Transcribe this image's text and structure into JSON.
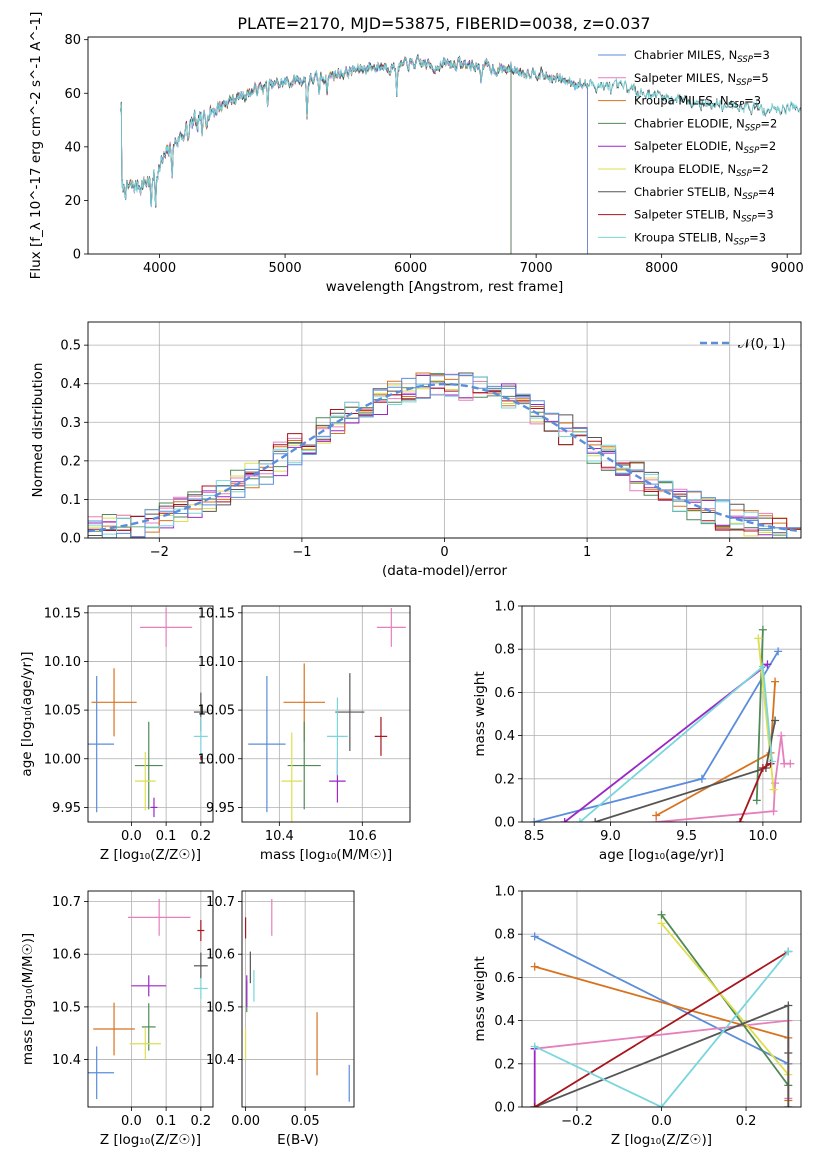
{
  "figure": {
    "title": "PLATE=2170, MJD=53875, FIBERID=0038, z=0.037"
  },
  "colors": {
    "Chabrier MILES": "#5b8ddb",
    "Salpeter MILES": "#e67fbd",
    "Kroupa MILES": "#d9721f",
    "Chabrier ELODIE": "#4f8a55",
    "Salpeter ELODIE": "#9b27c7",
    "Kroupa ELODIE": "#dede50",
    "Chabrier STELIB": "#555555",
    "Salpeter STELIB": "#a8151e",
    "Kroupa STELIB": "#79d6dc"
  },
  "chart_data": [
    {
      "id": "spectrum",
      "type": "line",
      "title": "PLATE=2170, MJD=53875, FIBERID=0038, z=0.037",
      "xlabel": "wavelength [Angstrom, rest frame]",
      "ylabel": "Flux [f_λ 10^-17 erg cm^-2 s^-1 A^-1]",
      "xlim": [
        3430,
        9110
      ],
      "ylim": [
        0,
        81
      ],
      "xticks": [
        "4000",
        "5000",
        "6000",
        "7000",
        "8000",
        "9000"
      ],
      "yticks": [
        "0",
        "20",
        "40",
        "60",
        "80"
      ],
      "grid": false,
      "legend_position": "top-right",
      "legend": [
        {
          "model": "Chabrier MILES",
          "label": "Chabrier MILES, N",
          "sub": "SSP",
          "eq": "=3"
        },
        {
          "model": "Salpeter MILES",
          "label": "Salpeter MILES, N",
          "sub": "SSP",
          "eq": "=5"
        },
        {
          "model": "Kroupa MILES",
          "label": "Kroupa MILES, N",
          "sub": "SSP",
          "eq": "=3"
        },
        {
          "model": "Chabrier ELODIE",
          "label": "Chabrier ELODIE, N",
          "sub": "SSP",
          "eq": "=2"
        },
        {
          "model": "Salpeter ELODIE",
          "label": "Salpeter ELODIE, N",
          "sub": "SSP",
          "eq": "=2"
        },
        {
          "model": "Kroupa ELODIE",
          "label": "Kroupa ELODIE, N",
          "sub": "SSP",
          "eq": "=2"
        },
        {
          "model": "Chabrier STELIB",
          "label": "Chabrier STELIB, N",
          "sub": "SSP",
          "eq": "=4"
        },
        {
          "model": "Salpeter STELIB",
          "label": "Salpeter STELIB, N",
          "sub": "SSP",
          "eq": "=3"
        },
        {
          "model": "Kroupa STELIB",
          "label": "Kroupa STELIB, N",
          "sub": "SSP",
          "eq": "=3"
        }
      ],
      "continuum": [
        [
          3700,
          24
        ],
        [
          3800,
          25
        ],
        [
          3900,
          27
        ],
        [
          4000,
          33
        ],
        [
          4100,
          40
        ],
        [
          4200,
          46
        ],
        [
          4300,
          50
        ],
        [
          4400,
          53
        ],
        [
          4500,
          56
        ],
        [
          4600,
          58
        ],
        [
          4700,
          60
        ],
        [
          4800,
          62
        ],
        [
          4900,
          63
        ],
        [
          5000,
          64
        ],
        [
          5100,
          65
        ],
        [
          5200,
          65
        ],
        [
          5300,
          66
        ],
        [
          5400,
          67
        ],
        [
          5500,
          68
        ],
        [
          5600,
          69
        ],
        [
          5700,
          70
        ],
        [
          5800,
          70
        ],
        [
          5900,
          70
        ],
        [
          6000,
          71
        ],
        [
          6100,
          71
        ],
        [
          6200,
          70
        ],
        [
          6300,
          71
        ],
        [
          6400,
          71
        ],
        [
          6500,
          70
        ],
        [
          6600,
          70
        ],
        [
          6700,
          69
        ],
        [
          6800,
          69
        ],
        [
          6900,
          68
        ],
        [
          7000,
          68
        ],
        [
          7100,
          66
        ],
        [
          7200,
          65
        ],
        [
          7300,
          64
        ],
        [
          7400,
          63
        ],
        [
          7500,
          63
        ],
        [
          7600,
          62
        ],
        [
          7700,
          62
        ],
        [
          7800,
          61
        ],
        [
          7900,
          60
        ],
        [
          8000,
          59
        ],
        [
          8100,
          58
        ],
        [
          8200,
          58
        ],
        [
          8300,
          57
        ],
        [
          8400,
          56
        ],
        [
          8500,
          55
        ],
        [
          8600,
          55
        ],
        [
          8700,
          55
        ],
        [
          8800,
          54
        ],
        [
          8900,
          54
        ],
        [
          9000,
          55
        ],
        [
          9100,
          55
        ]
      ],
      "absorption": [
        [
          3934,
          14
        ],
        [
          3968,
          13
        ],
        [
          4102,
          9
        ],
        [
          4227,
          6
        ],
        [
          4304,
          8
        ],
        [
          4340,
          9
        ],
        [
          4861,
          7
        ],
        [
          5175,
          14
        ],
        [
          5270,
          6
        ],
        [
          5335,
          5
        ],
        [
          5890,
          9
        ],
        [
          6563,
          4
        ]
      ],
      "spectrum_end": {
        "Chabrier MILES": 7410,
        "Salpeter MILES": 7410,
        "Kroupa MILES": 7410,
        "Chabrier ELODIE": 6800,
        "Salpeter ELODIE": 6800,
        "Kroupa ELODIE": 6800,
        "Chabrier STELIB": 9110,
        "Salpeter STELIB": 7410,
        "Kroupa STELIB": 9110
      }
    },
    {
      "id": "residuals",
      "type": "histogram",
      "xlabel": "(data-model)/error",
      "ylabel": "Normed distribution",
      "xlim": [
        -2.5,
        2.5
      ],
      "ylim": [
        0,
        0.56
      ],
      "xticks": [
        "−2",
        "−1",
        "0",
        "1",
        "2"
      ],
      "yticks": [
        "0.0",
        "0.1",
        "0.2",
        "0.3",
        "0.4",
        "0.5"
      ],
      "grid": true,
      "legend_position": "top-right",
      "reference_label": "𝒩(0, 1)",
      "bin_width": 0.1
    },
    {
      "id": "age_vs_Z",
      "type": "errorbar",
      "xlabel": "Z [log₁₀(Z/Z☉)]",
      "ylabel": "age  [log₁₀(age/yr)]",
      "xlim": [
        -0.125,
        0.235
      ],
      "ylim": [
        9.935,
        10.157
      ],
      "xticks": [
        "0.0",
        "0.1",
        "0.2"
      ],
      "yticks": [
        "9.95",
        "10.00",
        "10.05",
        "10.10",
        "10.15"
      ],
      "grid": true,
      "points": [
        {
          "model": "Chabrier MILES",
          "x": -0.1,
          "xerr": 0.05,
          "y": 10.015,
          "yerr": 0.07
        },
        {
          "model": "Salpeter MILES",
          "x": 0.1,
          "xerr": 0.075,
          "y": 10.135,
          "yerr": 0.02
        },
        {
          "model": "Kroupa MILES",
          "x": -0.05,
          "xerr": 0.065,
          "y": 10.058,
          "yerr": 0.035
        },
        {
          "model": "Chabrier ELODIE",
          "x": 0.05,
          "xerr": 0.04,
          "y": 9.993,
          "yerr": 0.045
        },
        {
          "model": "Salpeter ELODIE",
          "x": 0.065,
          "xerr": 0.01,
          "y": 9.95,
          "yerr": 0.01
        },
        {
          "model": "Kroupa ELODIE",
          "x": 0.04,
          "xerr": 0.03,
          "y": 9.977,
          "yerr": 0.03
        },
        {
          "model": "Chabrier STELIB",
          "x": 0.2,
          "xerr": 0.02,
          "y": 10.048,
          "yerr": 0.02
        },
        {
          "model": "Salpeter STELIB",
          "x": 0.2,
          "xerr": 0.002,
          "y": 10.002,
          "yerr": 0.003
        },
        {
          "model": "Kroupa STELIB",
          "x": 0.2,
          "xerr": 0.02,
          "y": 10.023,
          "yerr": 0.02
        }
      ]
    },
    {
      "id": "age_vs_mass",
      "type": "errorbar",
      "xlabel": "mass [log₁₀(M/M☉)]",
      "ylabel": "",
      "xlim": [
        10.31,
        10.715
      ],
      "ylim": [
        9.935,
        10.157
      ],
      "xticks": [
        "10.4",
        "10.6"
      ],
      "yticks": [
        "9.95",
        "10.00",
        "10.05",
        "10.10",
        "10.15"
      ],
      "grid": true,
      "points": [
        {
          "model": "Chabrier MILES",
          "x": 10.37,
          "xerr": 0.045,
          "y": 10.015,
          "yerr": 0.07
        },
        {
          "model": "Salpeter MILES",
          "x": 10.67,
          "xerr": 0.035,
          "y": 10.135,
          "yerr": 0.02
        },
        {
          "model": "Kroupa MILES",
          "x": 10.46,
          "xerr": 0.05,
          "y": 10.058,
          "yerr": 0.04
        },
        {
          "model": "Chabrier ELODIE",
          "x": 10.46,
          "xerr": 0.04,
          "y": 9.993,
          "yerr": 0.045
        },
        {
          "model": "Salpeter ELODIE",
          "x": 10.54,
          "xerr": 0.02,
          "y": 9.977,
          "yerr": 0.022
        },
        {
          "model": "Kroupa ELODIE",
          "x": 10.43,
          "xerr": 0.025,
          "y": 9.977,
          "yerr": 0.05
        },
        {
          "model": "Chabrier STELIB",
          "x": 10.57,
          "xerr": 0.035,
          "y": 10.048,
          "yerr": 0.04
        },
        {
          "model": "Salpeter STELIB",
          "x": 10.645,
          "xerr": 0.015,
          "y": 10.023,
          "yerr": 0.02
        },
        {
          "model": "Kroupa STELIB",
          "x": 10.54,
          "xerr": 0.025,
          "y": 10.023,
          "yerr": 0.04
        }
      ]
    },
    {
      "id": "mass_weight_vs_age",
      "type": "line",
      "xlabel": "age  [log₁₀(age/yr)]",
      "ylabel": "mass weight",
      "xlim": [
        8.42,
        10.25
      ],
      "ylim": [
        0,
        1.0
      ],
      "xticks": [
        "8.5",
        "9.0",
        "9.5",
        "10.0"
      ],
      "yticks": [
        "0.0",
        "0.2",
        "0.4",
        "0.6",
        "0.8",
        "1.0"
      ],
      "grid": true,
      "series": [
        {
          "model": "Chabrier MILES",
          "points": [
            [
              8.5,
              0.0
            ],
            [
              9.6,
              0.2
            ],
            [
              10.1,
              0.79
            ]
          ]
        },
        {
          "model": "Salpeter MILES",
          "points": [
            [
              9.3,
              0.0
            ],
            [
              10.07,
              0.05
            ],
            [
              10.08,
              0.18
            ],
            [
              10.12,
              0.4
            ],
            [
              10.14,
              0.27
            ],
            [
              10.18,
              0.27
            ]
          ]
        },
        {
          "model": "Kroupa MILES",
          "points": [
            [
              9.3,
              0.03
            ],
            [
              10.05,
              0.32
            ],
            [
              10.08,
              0.65
            ]
          ]
        },
        {
          "model": "Chabrier ELODIE",
          "points": [
            [
              9.96,
              0.1
            ],
            [
              10.0,
              0.89
            ]
          ]
        },
        {
          "model": "Salpeter ELODIE",
          "points": [
            [
              8.7,
              0.0
            ],
            [
              10.03,
              0.73
            ]
          ]
        },
        {
          "model": "Kroupa ELODIE",
          "points": [
            [
              9.97,
              0.85
            ],
            [
              10.07,
              0.15
            ]
          ]
        },
        {
          "model": "Chabrier STELIB",
          "points": [
            [
              8.9,
              0.0
            ],
            [
              10.02,
              0.25
            ],
            [
              10.08,
              0.47
            ]
          ]
        },
        {
          "model": "Salpeter STELIB",
          "points": [
            [
              9.85,
              0.0
            ],
            [
              10.0,
              0.25
            ],
            [
              10.05,
              0.27
            ]
          ]
        },
        {
          "model": "Kroupa STELIB",
          "points": [
            [
              8.8,
              0.0
            ],
            [
              10.0,
              0.72
            ],
            [
              10.06,
              0.28
            ]
          ]
        }
      ]
    },
    {
      "id": "mass_vs_Z",
      "type": "errorbar",
      "xlabel": "Z [log₁₀(Z/Z☉)]",
      "ylabel": "mass [log₁₀(M/M☉)]",
      "xlim": [
        -0.125,
        0.235
      ],
      "ylim": [
        10.31,
        10.72
      ],
      "xticks": [
        "0.0",
        "0.1",
        "0.2"
      ],
      "yticks": [
        "10.4",
        "10.5",
        "10.6",
        "10.7"
      ],
      "grid": true,
      "points": [
        {
          "model": "Chabrier MILES",
          "x": -0.1,
          "xerr": 0.05,
          "y": 10.375,
          "yerr": 0.05
        },
        {
          "model": "Salpeter MILES",
          "x": 0.08,
          "xerr": 0.09,
          "y": 10.67,
          "yerr": 0.035
        },
        {
          "model": "Kroupa MILES",
          "x": -0.05,
          "xerr": 0.06,
          "y": 10.458,
          "yerr": 0.05
        },
        {
          "model": "Chabrier ELODIE",
          "x": 0.05,
          "xerr": 0.02,
          "y": 10.462,
          "yerr": 0.045
        },
        {
          "model": "Salpeter ELODIE",
          "x": 0.05,
          "xerr": 0.05,
          "y": 10.54,
          "yerr": 0.02
        },
        {
          "model": "Kroupa ELODIE",
          "x": 0.04,
          "xerr": 0.045,
          "y": 10.43,
          "yerr": 0.03
        },
        {
          "model": "Chabrier STELIB",
          "x": 0.2,
          "xerr": 0.02,
          "y": 10.578,
          "yerr": 0.025
        },
        {
          "model": "Salpeter STELIB",
          "x": 0.2,
          "xerr": 0.01,
          "y": 10.645,
          "yerr": 0.02
        },
        {
          "model": "Kroupa STELIB",
          "x": 0.2,
          "xerr": 0.02,
          "y": 10.535,
          "yerr": 0.02
        }
      ]
    },
    {
      "id": "mass_vs_EBV",
      "type": "errorbar",
      "xlabel": "E(B-V)",
      "ylabel": "",
      "xlim": [
        -0.003,
        0.091
      ],
      "ylim": [
        10.31,
        10.72
      ],
      "xticks": [
        "0.00",
        "0.05"
      ],
      "yticks": [
        "10.4",
        "10.5",
        "10.6",
        "10.7"
      ],
      "grid": true,
      "points": [
        {
          "model": "Chabrier MILES",
          "x": 0.087,
          "xerr": 0,
          "y": 10.355,
          "yerr": 0.035
        },
        {
          "model": "Salpeter MILES",
          "x": 0.022,
          "xerr": 0,
          "y": 10.67,
          "yerr": 0.035
        },
        {
          "model": "Kroupa MILES",
          "x": 0.06,
          "xerr": 0,
          "y": 10.43,
          "yerr": 0.06
        },
        {
          "model": "Chabrier ELODIE",
          "x": 0.001,
          "xerr": 0,
          "y": 10.52,
          "yerr": 0.03
        },
        {
          "model": "Salpeter ELODIE",
          "x": 0.001,
          "xerr": 0,
          "y": 10.53,
          "yerr": 0.03
        },
        {
          "model": "Kroupa ELODIE",
          "x": 0.0,
          "xerr": 0,
          "y": 10.43,
          "yerr": 0.03
        },
        {
          "model": "Chabrier STELIB",
          "x": 0.004,
          "xerr": 0,
          "y": 10.575,
          "yerr": 0.03
        },
        {
          "model": "Salpeter STELIB",
          "x": 0.0,
          "xerr": 0,
          "y": 10.65,
          "yerr": 0.02
        },
        {
          "model": "Kroupa STELIB",
          "x": 0.007,
          "xerr": 0,
          "y": 10.54,
          "yerr": 0.03
        }
      ]
    },
    {
      "id": "mass_weight_vs_Z",
      "type": "line",
      "xlabel": "Z [log₁₀(Z/Z☉)]",
      "ylabel": "mass weight",
      "xlim": [
        -0.33,
        0.33
      ],
      "ylim": [
        0,
        1.0
      ],
      "xticks": [
        "−0.2",
        "0.0",
        "0.2"
      ],
      "yticks": [
        "0.0",
        "0.2",
        "0.4",
        "0.6",
        "0.8",
        "1.0"
      ],
      "grid": true,
      "series": [
        {
          "model": "Chabrier MILES",
          "points": [
            [
              -0.3,
              0.79
            ],
            [
              0.3,
              0.2
            ]
          ]
        },
        {
          "model": "Salpeter MILES",
          "points": [
            [
              -0.3,
              0.27
            ],
            [
              0.3,
              0.4
            ],
            [
              0.3,
              0.04
            ],
            [
              0.3,
              0.0
            ]
          ]
        },
        {
          "model": "Kroupa MILES",
          "points": [
            [
              -0.3,
              0.65
            ],
            [
              0.3,
              0.32
            ],
            [
              0.3,
              0.03
            ]
          ]
        },
        {
          "model": "Chabrier ELODIE",
          "points": [
            [
              0.0,
              0.89
            ],
            [
              0.3,
              0.1
            ]
          ]
        },
        {
          "model": "Salpeter ELODIE",
          "points": [
            [
              -0.3,
              0.27
            ],
            [
              -0.3,
              0.0
            ]
          ]
        },
        {
          "model": "Kroupa ELODIE",
          "points": [
            [
              0.0,
              0.85
            ],
            [
              0.3,
              0.15
            ]
          ]
        },
        {
          "model": "Chabrier STELIB",
          "points": [
            [
              -0.3,
              0.0
            ],
            [
              0.3,
              0.47
            ],
            [
              0.3,
              0.25
            ],
            [
              0.3,
              0.0
            ]
          ]
        },
        {
          "model": "Salpeter STELIB",
          "points": [
            [
              -0.3,
              0.0
            ],
            [
              0.3,
              0.72
            ]
          ]
        },
        {
          "model": "Kroupa STELIB",
          "points": [
            [
              -0.3,
              0.28
            ],
            [
              0.0,
              0.0
            ],
            [
              0.3,
              0.72
            ]
          ]
        }
      ]
    }
  ]
}
